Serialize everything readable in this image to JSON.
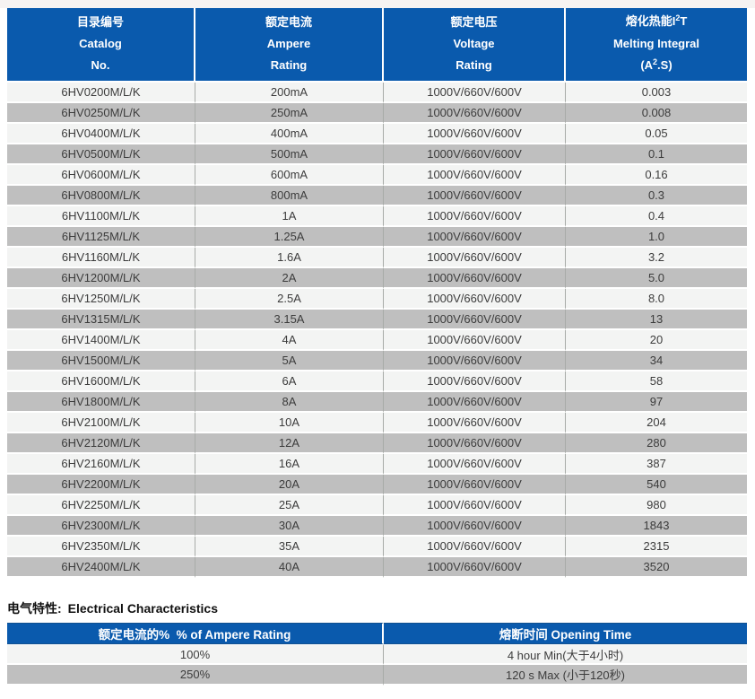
{
  "colors": {
    "header_blue": "#0a5aad",
    "row_light": "#f3f4f3",
    "row_dark": "#bfbfbf",
    "header_text": "#ffffff",
    "body_text": "#3c3c3c"
  },
  "main_table": {
    "columns": [
      {
        "zh": "目录编号",
        "en1": "Catalog",
        "en2": "No."
      },
      {
        "zh": "额定电流",
        "en1": "Ampere",
        "en2": "Rating"
      },
      {
        "zh": "额定电压",
        "en1": "Voltage",
        "en2": "Rating"
      },
      {
        "zh_pre": "熔化热能I",
        "zh_sup": "2",
        "zh_post": "T",
        "en1": "Melting Integral",
        "en2_pre": "(A",
        "en2_sup": "2",
        "en2_post": ".S)"
      }
    ],
    "rows": [
      {
        "catalog": "6HV0200M/L/K",
        "ampere": "200mA",
        "voltage": "1000V/660V/600V",
        "i2t": "0.003"
      },
      {
        "catalog": "6HV0250M/L/K",
        "ampere": "250mA",
        "voltage": "1000V/660V/600V",
        "i2t": "0.008"
      },
      {
        "catalog": "6HV0400M/L/K",
        "ampere": "400mA",
        "voltage": "1000V/660V/600V",
        "i2t": "0.05"
      },
      {
        "catalog": "6HV0500M/L/K",
        "ampere": "500mA",
        "voltage": "1000V/660V/600V",
        "i2t": "0.1"
      },
      {
        "catalog": "6HV0600M/L/K",
        "ampere": "600mA",
        "voltage": "1000V/660V/600V",
        "i2t": "0.16"
      },
      {
        "catalog": "6HV0800M/L/K",
        "ampere": "800mA",
        "voltage": "1000V/660V/600V",
        "i2t": "0.3"
      },
      {
        "catalog": "6HV1100M/L/K",
        "ampere": "1A",
        "voltage": "1000V/660V/600V",
        "i2t": "0.4"
      },
      {
        "catalog": "6HV1125M/L/K",
        "ampere": "1.25A",
        "voltage": "1000V/660V/600V",
        "i2t": "1.0"
      },
      {
        "catalog": "6HV1160M/L/K",
        "ampere": "1.6A",
        "voltage": "1000V/660V/600V",
        "i2t": "3.2"
      },
      {
        "catalog": "6HV1200M/L/K",
        "ampere": "2A",
        "voltage": "1000V/660V/600V",
        "i2t": "5.0"
      },
      {
        "catalog": "6HV1250M/L/K",
        "ampere": "2.5A",
        "voltage": "1000V/660V/600V",
        "i2t": "8.0"
      },
      {
        "catalog": "6HV1315M/L/K",
        "ampere": "3.15A",
        "voltage": "1000V/660V/600V",
        "i2t": "13"
      },
      {
        "catalog": "6HV1400M/L/K",
        "ampere": "4A",
        "voltage": "1000V/660V/600V",
        "i2t": "20"
      },
      {
        "catalog": "6HV1500M/L/K",
        "ampere": "5A",
        "voltage": "1000V/660V/600V",
        "i2t": "34"
      },
      {
        "catalog": "6HV1600M/L/K",
        "ampere": "6A",
        "voltage": "1000V/660V/600V",
        "i2t": "58"
      },
      {
        "catalog": "6HV1800M/L/K",
        "ampere": "8A",
        "voltage": "1000V/660V/600V",
        "i2t": "97"
      },
      {
        "catalog": "6HV2100M/L/K",
        "ampere": "10A",
        "voltage": "1000V/660V/600V",
        "i2t": "204"
      },
      {
        "catalog": "6HV2120M/L/K",
        "ampere": "12A",
        "voltage": "1000V/660V/600V",
        "i2t": "280"
      },
      {
        "catalog": "6HV2160M/L/K",
        "ampere": "16A",
        "voltage": "1000V/660V/600V",
        "i2t": "387"
      },
      {
        "catalog": "6HV2200M/L/K",
        "ampere": "20A",
        "voltage": "1000V/660V/600V",
        "i2t": "540"
      },
      {
        "catalog": "6HV2250M/L/K",
        "ampere": "25A",
        "voltage": "1000V/660V/600V",
        "i2t": "980"
      },
      {
        "catalog": "6HV2300M/L/K",
        "ampere": "30A",
        "voltage": "1000V/660V/600V",
        "i2t": "1843"
      },
      {
        "catalog": "6HV2350M/L/K",
        "ampere": "35A",
        "voltage": "1000V/660V/600V",
        "i2t": "2315"
      },
      {
        "catalog": "6HV2400M/L/K",
        "ampere": "40A",
        "voltage": "1000V/660V/600V",
        "i2t": "3520"
      }
    ]
  },
  "section2": {
    "title_zh": "电气特性:",
    "title_en": "Electrical Characteristics",
    "header": [
      "额定电流的%  % of Ampere Rating",
      "熔断时间 Opening Time"
    ],
    "rows": [
      {
        "percent": "100%",
        "time": "4 hour Min(大于4小时)"
      },
      {
        "percent": "250%",
        "time": "120 s Max (小于120秒)"
      }
    ]
  }
}
